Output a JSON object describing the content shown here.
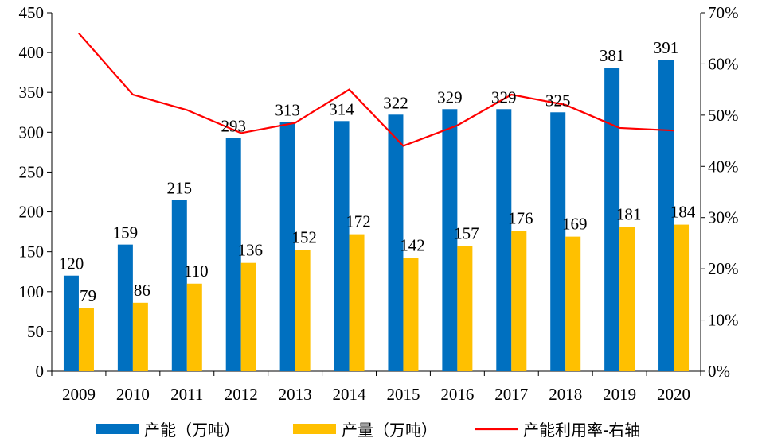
{
  "chart_data": {
    "type": "bar",
    "categories": [
      "2009",
      "2010",
      "2011",
      "2012",
      "2013",
      "2014",
      "2015",
      "2016",
      "2017",
      "2018",
      "2019",
      "2020"
    ],
    "series": [
      {
        "name": "产能（万吨）",
        "kind": "bar",
        "axis": "left",
        "color": "#0070C0",
        "values": [
          120,
          159,
          215,
          293,
          313,
          314,
          322,
          329,
          329,
          325,
          381,
          391
        ]
      },
      {
        "name": "产量（万吨）",
        "kind": "bar",
        "axis": "left",
        "color": "#FFC000",
        "values": [
          79,
          86,
          110,
          136,
          152,
          172,
          142,
          157,
          176,
          169,
          181,
          184
        ]
      },
      {
        "name": "产能利用率-右轴",
        "kind": "line",
        "axis": "right",
        "color": "#FF0000",
        "values": [
          0.66,
          0.54,
          0.51,
          0.465,
          0.485,
          0.55,
          0.44,
          0.48,
          0.54,
          0.52,
          0.475,
          0.47
        ]
      }
    ],
    "y_left": {
      "min": 0,
      "max": 450,
      "ticks": [
        "0",
        "50",
        "100",
        "150",
        "200",
        "250",
        "300",
        "350",
        "400",
        "450"
      ]
    },
    "y_right": {
      "min": 0,
      "max": 0.7,
      "ticks": [
        "0%",
        "10%",
        "20%",
        "30%",
        "40%",
        "50%",
        "60%",
        "70%"
      ]
    },
    "legend_position": "bottom",
    "grid": false
  }
}
